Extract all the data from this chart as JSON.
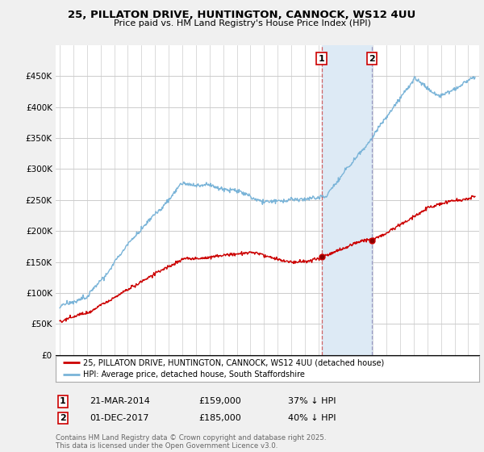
{
  "title_line1": "25, PILLATON DRIVE, HUNTINGTON, CANNOCK, WS12 4UU",
  "title_line2": "Price paid vs. HM Land Registry's House Price Index (HPI)",
  "ylim": [
    0,
    500000
  ],
  "yticks": [
    0,
    50000,
    100000,
    150000,
    200000,
    250000,
    300000,
    350000,
    400000,
    450000
  ],
  "ytick_labels": [
    "£0",
    "£50K",
    "£100K",
    "£150K",
    "£200K",
    "£250K",
    "£300K",
    "£350K",
    "£400K",
    "£450K"
  ],
  "hpi_color": "#7ab4d8",
  "price_color": "#cc0000",
  "marker1_x": 2014.22,
  "marker1_y": 159000,
  "marker2_x": 2017.92,
  "marker2_y": 185000,
  "annotation1": {
    "label": "1",
    "date": "21-MAR-2014",
    "price": "£159,000",
    "pct": "37% ↓ HPI"
  },
  "annotation2": {
    "label": "2",
    "date": "01-DEC-2017",
    "price": "£185,000",
    "pct": "40% ↓ HPI"
  },
  "legend_line1": "25, PILLATON DRIVE, HUNTINGTON, CANNOCK, WS12 4UU (detached house)",
  "legend_line2": "HPI: Average price, detached house, South Staffordshire",
  "footer": "Contains HM Land Registry data © Crown copyright and database right 2025.\nThis data is licensed under the Open Government Licence v3.0.",
  "background_color": "#f0f0f0",
  "plot_bg_color": "#ffffff",
  "grid_color": "#cccccc",
  "shaded_color": "#ddeaf5",
  "shaded_region_x1": 2014.22,
  "shaded_region_x2": 2017.92,
  "xlim_left": 1994.7,
  "xlim_right": 2025.8
}
